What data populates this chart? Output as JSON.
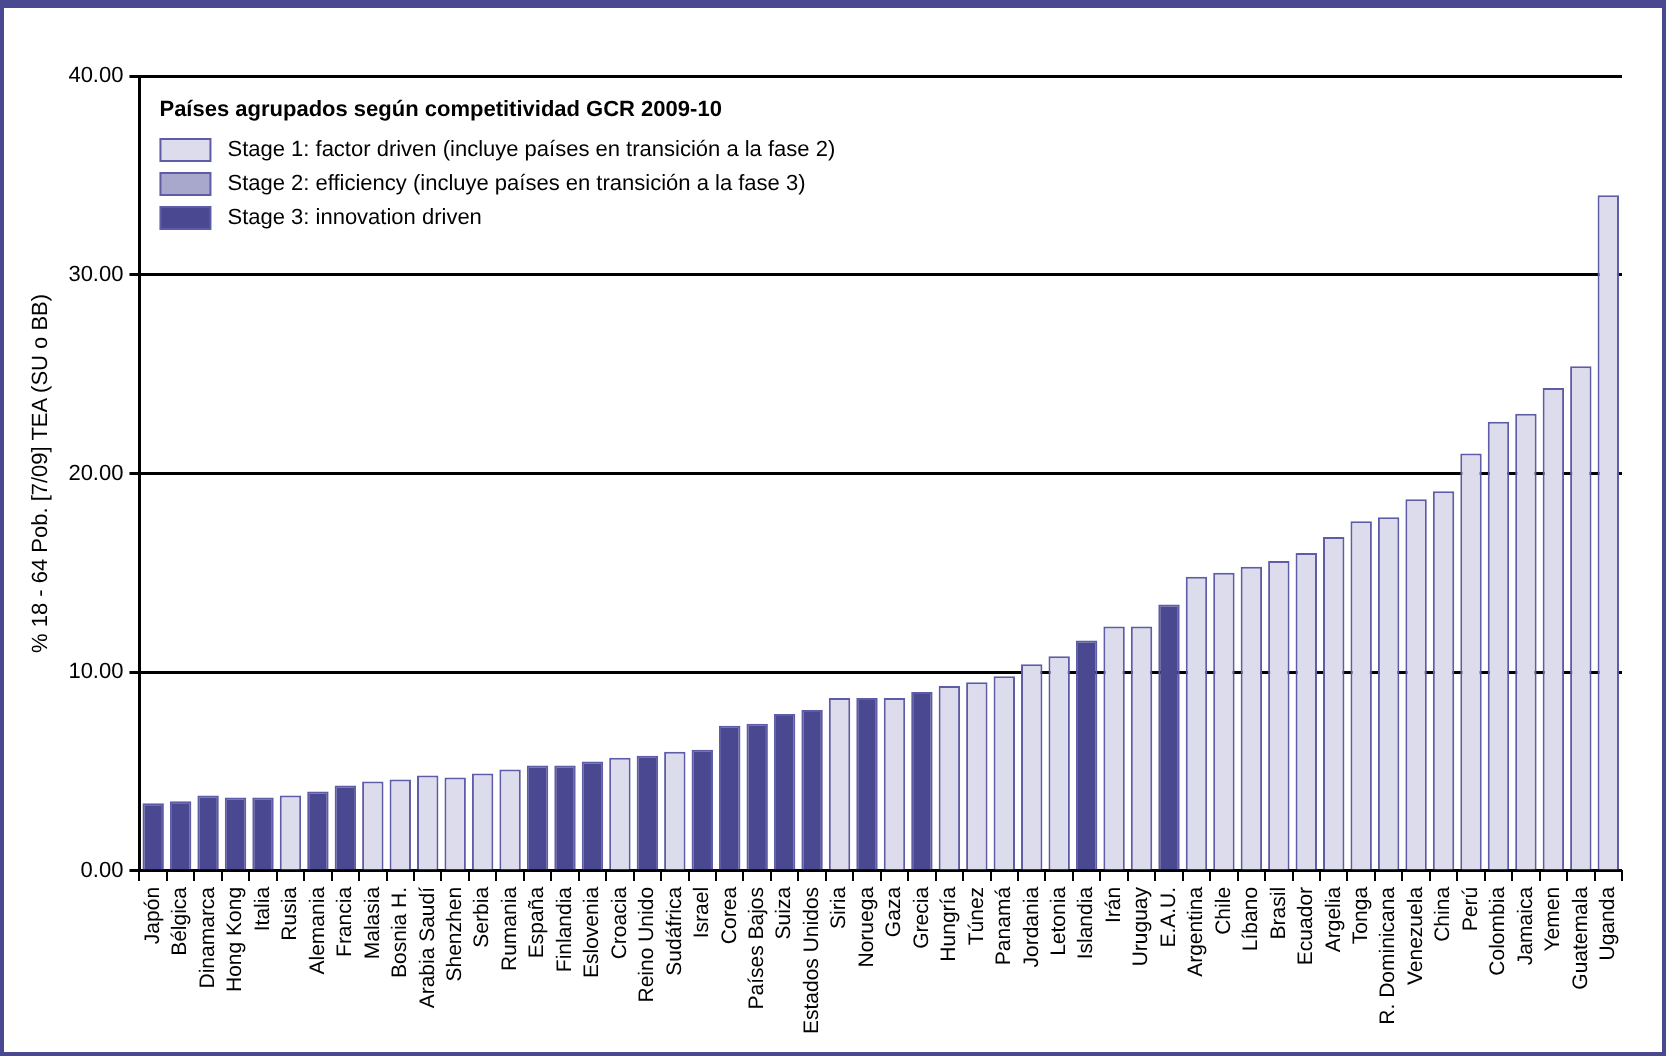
{
  "chart_data": {
    "type": "bar",
    "ylabel": "% 18 - 64 Pob. [7/09] TEA (SU o BB)",
    "legend_title": "Países agrupados según competitividad GCR 2009-10",
    "categories": [
      "Japón",
      "Bélgica",
      "Dinamarca",
      "Hong Kong",
      "Italia",
      "Rusia",
      "Alemania",
      "Francia",
      "Malasia",
      "Bosnia H.",
      "Arabia Saudí",
      "Shenzhen",
      "Serbia",
      "Rumania",
      "España",
      "Finlandia",
      "Eslovenia",
      "Croacia",
      "Reino Unido",
      "Sudáfrica",
      "Israel",
      "Corea",
      "Países Bajos",
      "Suiza",
      "Estados Unidos",
      "Siria",
      "Noruega",
      "Gaza",
      "Grecia",
      "Hungría",
      "Túnez",
      "Panamá",
      "Jordania",
      "Letonia",
      "Islandia",
      "Irán",
      "Uruguay",
      "E.A.U.",
      "Argentina",
      "Chile",
      "Líbano",
      "Brasil",
      "Ecuador",
      "Argelia",
      "Tonga",
      "R. Dominicana",
      "Venezuela",
      "China",
      "Perú",
      "Colombia",
      "Jamaica",
      "Yemen",
      "Guatemala",
      "Uganda"
    ],
    "series": [
      {
        "name": "Stage 1: factor driven (incluye países en transición a la fase 2)",
        "color": "#dcdcec",
        "values": [
          null,
          null,
          null,
          null,
          null,
          3.8,
          null,
          null,
          4.5,
          4.6,
          4.8,
          4.7,
          4.9,
          5.1,
          null,
          null,
          null,
          5.7,
          null,
          6.0,
          null,
          null,
          null,
          null,
          null,
          8.7,
          null,
          8.7,
          null,
          9.3,
          9.5,
          9.8,
          10.4,
          10.8,
          null,
          12.3,
          12.3,
          null,
          14.8,
          15.0,
          15.3,
          15.6,
          16.0,
          16.8,
          17.6,
          17.8,
          18.7,
          19.1,
          21.0,
          22.6,
          23.0,
          24.3,
          25.4,
          34.0
        ]
      },
      {
        "name": "Stage 2: efficiency (incluye países en transición a la fase 3)",
        "color": "#a8a8cc",
        "values": [
          null,
          null,
          null,
          null,
          null,
          null,
          null,
          null,
          null,
          null,
          null,
          null,
          null,
          null,
          null,
          null,
          null,
          null,
          null,
          null,
          null,
          null,
          null,
          null,
          null,
          null,
          null,
          null,
          null,
          null,
          null,
          null,
          null,
          null,
          null,
          null,
          null,
          null,
          null,
          null,
          null,
          null,
          null,
          null,
          null,
          null,
          null,
          null,
          null,
          null,
          null,
          null,
          null,
          null
        ]
      },
      {
        "name": "Stage 3: innovation driven",
        "color": "#4a4890",
        "values": [
          3.4,
          3.5,
          3.8,
          3.7,
          3.7,
          null,
          4.0,
          4.3,
          null,
          null,
          null,
          null,
          null,
          null,
          5.3,
          5.3,
          5.5,
          null,
          5.8,
          null,
          6.1,
          7.3,
          7.4,
          7.9,
          8.1,
          null,
          8.7,
          null,
          9.0,
          null,
          null,
          null,
          null,
          null,
          11.6,
          null,
          null,
          13.4,
          null,
          null,
          null,
          null,
          null,
          null,
          null,
          null,
          null,
          null,
          null,
          null,
          null,
          null,
          null,
          null
        ]
      }
    ],
    "ylim": [
      0,
      40
    ],
    "yticks": [
      {
        "value": 0,
        "label": "0.00"
      },
      {
        "value": 10,
        "label": "10.00"
      },
      {
        "value": 20,
        "label": "20.00"
      },
      {
        "value": 30,
        "label": "30.00"
      },
      {
        "value": 40,
        "label": "40.00"
      }
    ],
    "grid": "y",
    "legend": "top left"
  }
}
